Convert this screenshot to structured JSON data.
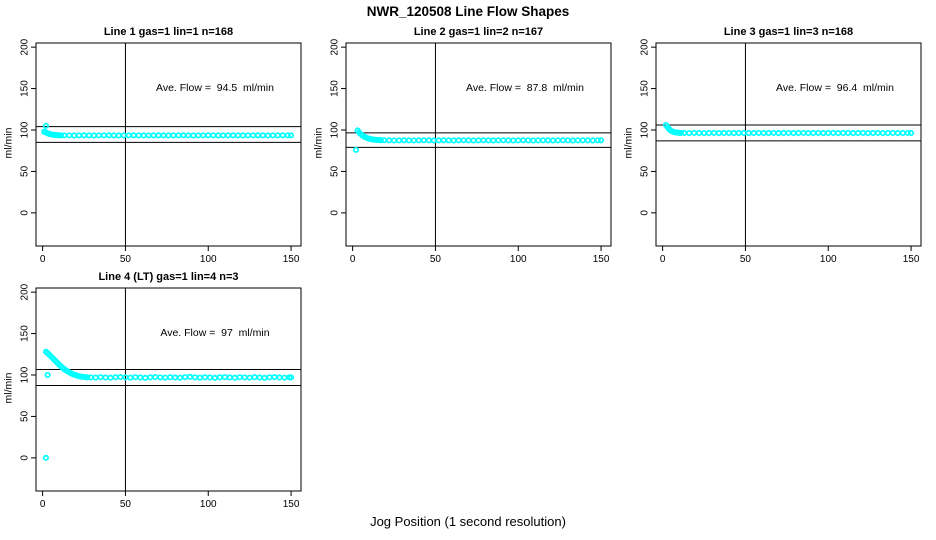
{
  "page": {
    "title": "NWR_120508  Line Flow Shapes",
    "xlabel": "Jog Position (1 second resolution)"
  },
  "colors": {
    "point_cyan": "#00FFFF",
    "axis_black": "#000000",
    "background": "#FFFFFF"
  },
  "axes": {
    "ylabel": "ml/min",
    "y_ticks": [
      0,
      50,
      100,
      150,
      200
    ],
    "x_ticks": [
      0,
      50,
      100,
      150
    ],
    "x_range": [
      -4,
      156
    ],
    "y_range": [
      -40,
      205
    ],
    "grid": false
  },
  "chart_data": [
    {
      "type": "scatter",
      "title": "Line 1 gas=1 lin=1 n=168",
      "annotation": "Ave. Flow =  94.5  ml/min",
      "ave_flow": 94.5,
      "n": 168,
      "vline_x": 50,
      "hlines": [
        104.0,
        85.1
      ],
      "outliers": [
        [
          2,
          105
        ]
      ],
      "points": [
        [
          1,
          98
        ],
        [
          2,
          97
        ],
        [
          3,
          96
        ],
        [
          4,
          95.3
        ],
        [
          5,
          94.8
        ],
        [
          6,
          94.4
        ],
        [
          7,
          94.1
        ],
        [
          8,
          93.9
        ],
        [
          9,
          93.7
        ],
        [
          10,
          93.6
        ],
        [
          11,
          93.5
        ],
        [
          13,
          93.5
        ],
        [
          16,
          93.5
        ],
        [
          19,
          93.4
        ],
        [
          22,
          93.5
        ],
        [
          25,
          93.6
        ],
        [
          28,
          93.5
        ],
        [
          31,
          93.4
        ],
        [
          34,
          93.5
        ],
        [
          37,
          93.5
        ],
        [
          40,
          93.6
        ],
        [
          43,
          93.5
        ],
        [
          46,
          93.4
        ],
        [
          49,
          93.5
        ],
        [
          52,
          93.5
        ],
        [
          55,
          93.6
        ],
        [
          58,
          93.5
        ],
        [
          61,
          93.4
        ],
        [
          64,
          93.5
        ],
        [
          67,
          93.5
        ],
        [
          70,
          93.6
        ],
        [
          73,
          93.5
        ],
        [
          76,
          93.4
        ],
        [
          79,
          93.5
        ],
        [
          82,
          93.5
        ],
        [
          85,
          93.6
        ],
        [
          88,
          93.5
        ],
        [
          91,
          93.4
        ],
        [
          94,
          93.5
        ],
        [
          97,
          93.5
        ],
        [
          100,
          93.6
        ],
        [
          103,
          93.5
        ],
        [
          106,
          93.4
        ],
        [
          109,
          93.5
        ],
        [
          112,
          93.5
        ],
        [
          115,
          93.6
        ],
        [
          118,
          93.5
        ],
        [
          121,
          93.4
        ],
        [
          124,
          93.5
        ],
        [
          127,
          93.5
        ],
        [
          130,
          93.6
        ],
        [
          133,
          93.5
        ],
        [
          136,
          93.4
        ],
        [
          139,
          93.5
        ],
        [
          142,
          93.5
        ],
        [
          145,
          93.6
        ],
        [
          148,
          93.5
        ],
        [
          150,
          93.5
        ]
      ]
    },
    {
      "type": "scatter",
      "title": "Line 2 gas=1 lin=2 n=167",
      "annotation": "Ave. Flow =  87.8  ml/min",
      "ave_flow": 87.8,
      "n": 167,
      "vline_x": 50,
      "hlines": [
        96.6,
        79.0
      ],
      "outliers": [
        [
          2,
          76
        ]
      ],
      "points": [
        [
          3,
          99.5
        ],
        [
          4,
          97
        ],
        [
          5,
          95
        ],
        [
          6,
          93.3
        ],
        [
          7,
          92
        ],
        [
          8,
          91
        ],
        [
          9,
          90.2
        ],
        [
          10,
          89.5
        ],
        [
          11,
          89
        ],
        [
          12,
          88.6
        ],
        [
          13,
          88.3
        ],
        [
          14,
          88.1
        ],
        [
          15,
          87.9
        ],
        [
          16,
          87.8
        ],
        [
          17,
          87.7
        ],
        [
          19,
          87.6
        ],
        [
          22,
          87.5
        ],
        [
          25,
          87.4
        ],
        [
          28,
          87.5
        ],
        [
          31,
          87.6
        ],
        [
          34,
          87.5
        ],
        [
          37,
          87.4
        ],
        [
          40,
          87.5
        ],
        [
          43,
          87.6
        ],
        [
          46,
          87.5
        ],
        [
          49,
          87.4
        ],
        [
          52,
          87.5
        ],
        [
          55,
          87.6
        ],
        [
          58,
          87.5
        ],
        [
          61,
          87.4
        ],
        [
          64,
          87.5
        ],
        [
          67,
          87.6
        ],
        [
          70,
          87.5
        ],
        [
          73,
          87.4
        ],
        [
          76,
          87.5
        ],
        [
          79,
          87.6
        ],
        [
          82,
          87.5
        ],
        [
          85,
          87.4
        ],
        [
          88,
          87.5
        ],
        [
          91,
          87.6
        ],
        [
          94,
          87.5
        ],
        [
          97,
          87.4
        ],
        [
          100,
          87.5
        ],
        [
          103,
          87.6
        ],
        [
          106,
          87.5
        ],
        [
          109,
          87.4
        ],
        [
          112,
          87.5
        ],
        [
          115,
          87.6
        ],
        [
          118,
          87.5
        ],
        [
          121,
          87.4
        ],
        [
          124,
          87.5
        ],
        [
          127,
          87.6
        ],
        [
          130,
          87.5
        ],
        [
          133,
          87.4
        ],
        [
          136,
          87.5
        ],
        [
          139,
          87.6
        ],
        [
          142,
          87.5
        ],
        [
          145,
          87.4
        ],
        [
          148,
          87.5
        ],
        [
          150,
          87.5
        ]
      ]
    },
    {
      "type": "scatter",
      "title": "Line 3 gas=1 lin=3 n=168",
      "annotation": "Ave. Flow =  96.4  ml/min",
      "ave_flow": 96.4,
      "n": 168,
      "vline_x": 50,
      "hlines": [
        106.0,
        86.8
      ],
      "outliers": [],
      "points": [
        [
          2,
          106
        ],
        [
          3,
          103.5
        ],
        [
          4,
          101
        ],
        [
          5,
          99.3
        ],
        [
          6,
          98.2
        ],
        [
          7,
          97.5
        ],
        [
          8,
          97
        ],
        [
          9,
          96.8
        ],
        [
          10,
          96.6
        ],
        [
          11,
          96.5
        ],
        [
          13,
          96.4
        ],
        [
          16,
          96.3
        ],
        [
          19,
          96.5
        ],
        [
          22,
          96.4
        ],
        [
          25,
          96.2
        ],
        [
          28,
          96.4
        ],
        [
          31,
          96.5
        ],
        [
          34,
          96.3
        ],
        [
          37,
          96.4
        ],
        [
          40,
          96.5
        ],
        [
          43,
          96.3
        ],
        [
          46,
          96.4
        ],
        [
          49,
          96.5
        ],
        [
          52,
          96.3
        ],
        [
          55,
          96.4
        ],
        [
          58,
          96.5
        ],
        [
          61,
          96.3
        ],
        [
          64,
          96.4
        ],
        [
          67,
          96.5
        ],
        [
          70,
          96.3
        ],
        [
          73,
          96.4
        ],
        [
          76,
          96.5
        ],
        [
          79,
          96.3
        ],
        [
          82,
          96.4
        ],
        [
          85,
          96.5
        ],
        [
          88,
          96.3
        ],
        [
          91,
          96.4
        ],
        [
          94,
          96.5
        ],
        [
          97,
          96.3
        ],
        [
          100,
          96.4
        ],
        [
          103,
          96.5
        ],
        [
          106,
          96.3
        ],
        [
          109,
          96.4
        ],
        [
          112,
          96.5
        ],
        [
          115,
          96.3
        ],
        [
          118,
          96.4
        ],
        [
          121,
          96.5
        ],
        [
          124,
          96.3
        ],
        [
          127,
          96.4
        ],
        [
          130,
          96.5
        ],
        [
          133,
          96.3
        ],
        [
          136,
          96.4
        ],
        [
          139,
          96.5
        ],
        [
          142,
          96.3
        ],
        [
          145,
          96.4
        ],
        [
          148,
          96.5
        ],
        [
          150,
          96.4
        ]
      ]
    },
    {
      "type": "scatter",
      "title": "Line 4 (LT) gas=1 lin=4 n=3",
      "annotation": "Ave. Flow =  97  ml/min",
      "ave_flow": 97,
      "n": 3,
      "vline_x": 50,
      "hlines": [
        106.7,
        87.3
      ],
      "outliers": [
        [
          2,
          0
        ],
        [
          3,
          100
        ]
      ],
      "points": [
        [
          2,
          128
        ],
        [
          3,
          126.5
        ],
        [
          4,
          124.5
        ],
        [
          5,
          122.5
        ],
        [
          6,
          120.5
        ],
        [
          7,
          118.5
        ],
        [
          8,
          116.5
        ],
        [
          9,
          114.5
        ],
        [
          10,
          112.5
        ],
        [
          11,
          110.5
        ],
        [
          12,
          108.8
        ],
        [
          13,
          107.2
        ],
        [
          14,
          105.8
        ],
        [
          15,
          104.5
        ],
        [
          16,
          103.3
        ],
        [
          17,
          102.2
        ],
        [
          18,
          101.2
        ],
        [
          19,
          100.4
        ],
        [
          20,
          99.7
        ],
        [
          21,
          99.1
        ],
        [
          22,
          98.6
        ],
        [
          23,
          98.2
        ],
        [
          24,
          97.9
        ],
        [
          25,
          97.6
        ],
        [
          26,
          97.4
        ],
        [
          27,
          97.2
        ],
        [
          29,
          97.1
        ],
        [
          32,
          96.9
        ],
        [
          35,
          97.4
        ],
        [
          38,
          97.0
        ],
        [
          41,
          96.7
        ],
        [
          44,
          97.3
        ],
        [
          47,
          97.6
        ],
        [
          50,
          97.1
        ],
        [
          53,
          96.8
        ],
        [
          56,
          97.4
        ],
        [
          59,
          97.0
        ],
        [
          62,
          96.6
        ],
        [
          65,
          97.2
        ],
        [
          68,
          97.6
        ],
        [
          71,
          97.1
        ],
        [
          74,
          96.8
        ],
        [
          77,
          97.3
        ],
        [
          80,
          97.0
        ],
        [
          83,
          96.7
        ],
        [
          86,
          97.4
        ],
        [
          89,
          97.8
        ],
        [
          92,
          97.2
        ],
        [
          95,
          96.8
        ],
        [
          98,
          97.3
        ],
        [
          101,
          97.0
        ],
        [
          104,
          96.6
        ],
        [
          107,
          97.2
        ],
        [
          110,
          97.5
        ],
        [
          113,
          97.0
        ],
        [
          116,
          96.7
        ],
        [
          119,
          97.3
        ],
        [
          122,
          97.1
        ],
        [
          125,
          96.8
        ],
        [
          128,
          97.4
        ],
        [
          131,
          97.0
        ],
        [
          134,
          96.6
        ],
        [
          137,
          97.2
        ],
        [
          140,
          97.5
        ],
        [
          143,
          97.0
        ],
        [
          146,
          96.8
        ],
        [
          149,
          97.2
        ],
        [
          150,
          97.0
        ]
      ]
    }
  ]
}
